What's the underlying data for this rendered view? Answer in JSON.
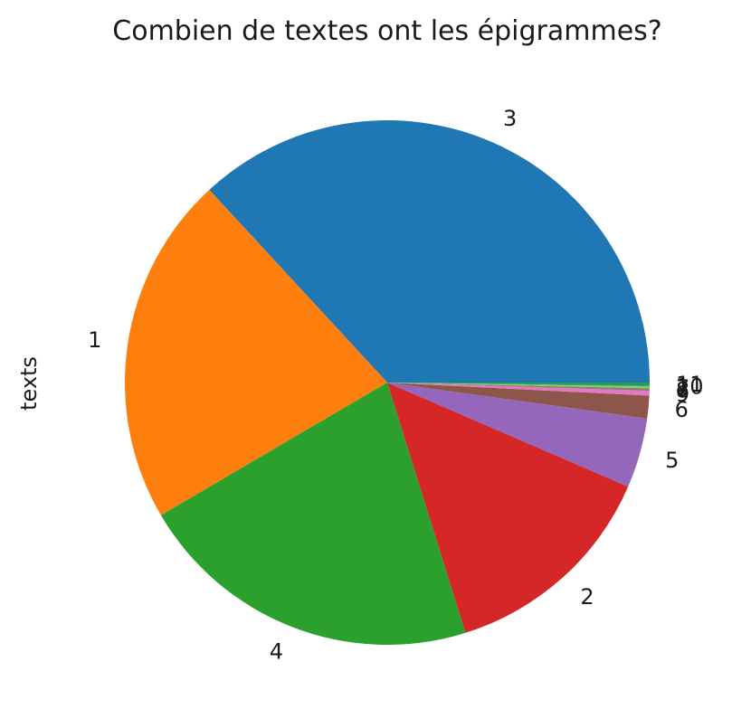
{
  "chart_data": {
    "type": "pie",
    "title": "Combien de textes ont les épigrammes?",
    "ylabel": "texts",
    "start_angle_deg": 0,
    "direction": "counterclockwise",
    "slices": [
      {
        "label": "3",
        "value": 36.9,
        "color": "#1f77b4"
      },
      {
        "label": "1",
        "value": 21.6,
        "color": "#ff7f0e"
      },
      {
        "label": "4",
        "value": 21.4,
        "color": "#2ca02c"
      },
      {
        "label": "2",
        "value": 13.7,
        "color": "#d62728"
      },
      {
        "label": "5",
        "value": 4.3,
        "color": "#9467bd"
      },
      {
        "label": "6",
        "value": 1.4,
        "color": "#8c564b"
      },
      {
        "label": "9",
        "value": 0.3,
        "color": "#e377c2"
      },
      {
        "label": "8",
        "value": 0.15,
        "color": "#7f7f7f"
      },
      {
        "label": "7",
        "value": 0.1,
        "color": "#bcbd22"
      },
      {
        "label": "10",
        "value": 0.05,
        "color": "#17becf"
      },
      {
        "label": "11",
        "value": 0.2,
        "color": "#1f9e55"
      }
    ]
  }
}
